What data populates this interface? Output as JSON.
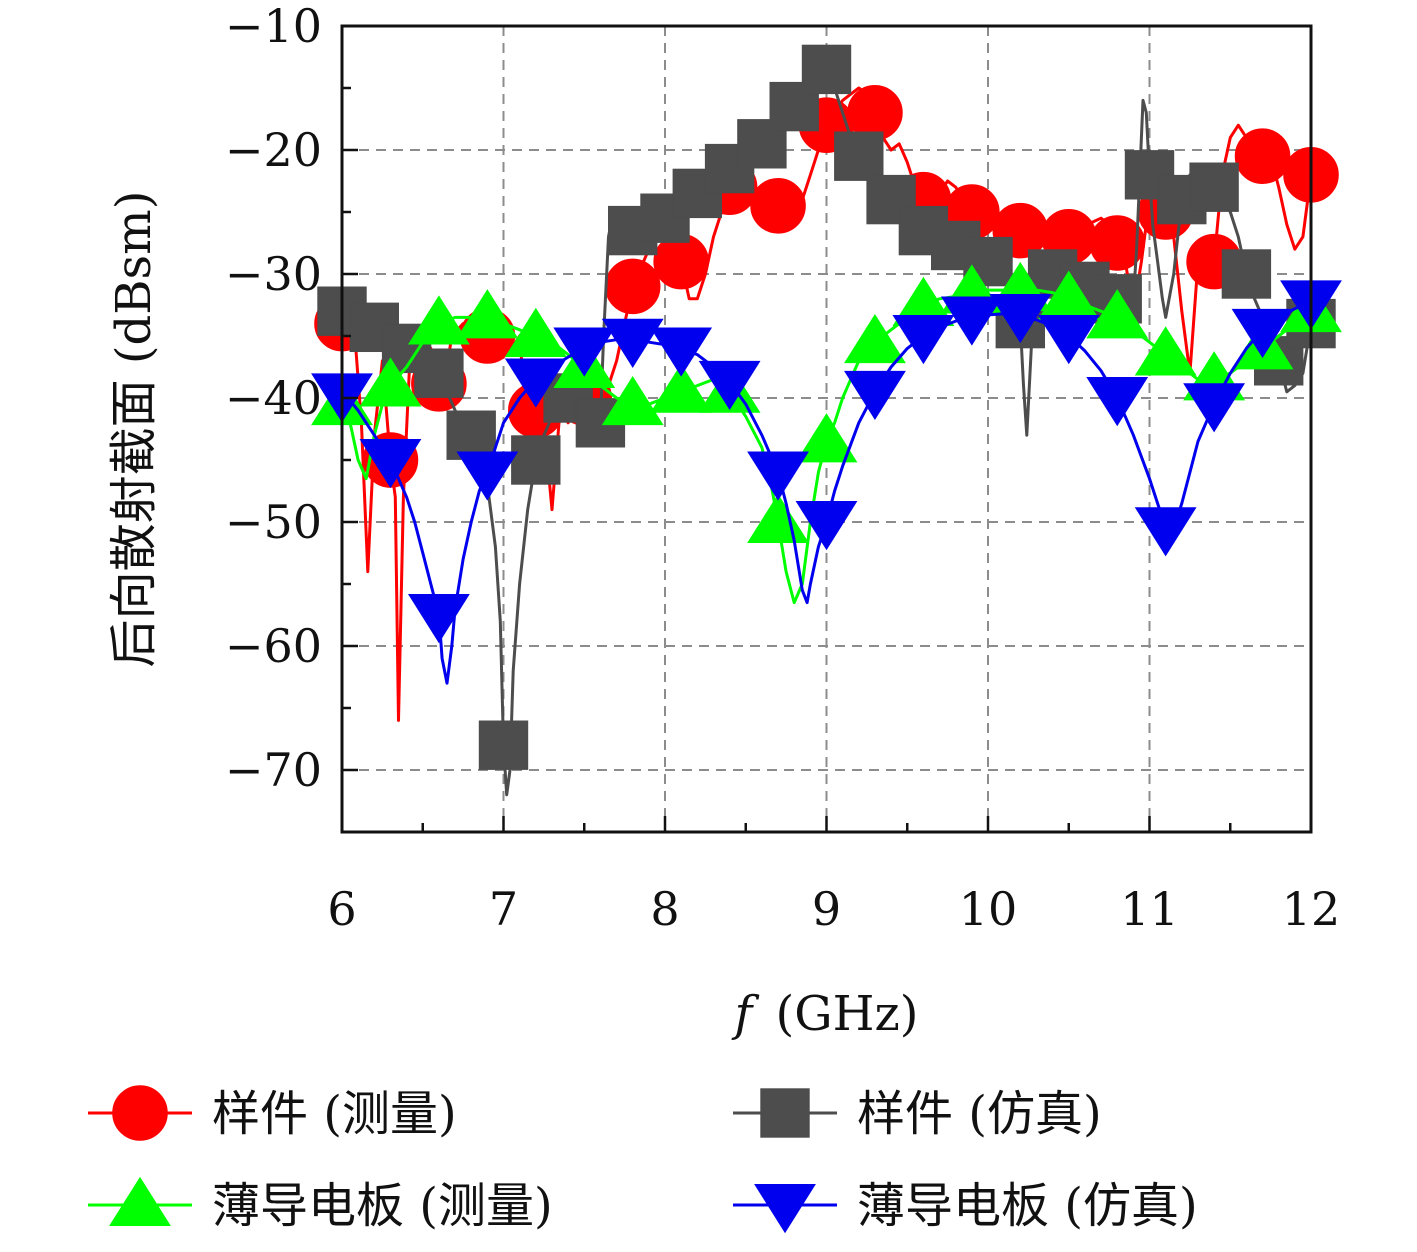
{
  "chart_data": {
    "type": "line",
    "xlabel_italic": "f",
    "xlabel_unit": "(GHz)",
    "ylabel": "后向散射截面 (dBsm)",
    "xlim": [
      6,
      12
    ],
    "ylim": [
      -75,
      -10
    ],
    "xticks": [
      "6",
      "7",
      "8",
      "9",
      "10",
      "11",
      "12"
    ],
    "yticks": [
      "−10",
      "−20",
      "−30",
      "−40",
      "−50",
      "−60",
      "−70"
    ],
    "grid": true,
    "legend_position": "bottom",
    "series": [
      {
        "name": "样件 (测量)",
        "color": "#ff0000",
        "marker": "circle",
        "x": [
          6.0,
          6.08,
          6.12,
          6.16,
          6.2,
          6.25,
          6.3,
          6.33,
          6.35,
          6.38,
          6.42,
          6.48,
          6.55,
          6.62,
          6.68,
          6.75,
          6.82,
          6.9,
          6.95,
          7.0,
          7.05,
          7.1,
          7.15,
          7.2,
          7.25,
          7.3,
          7.35,
          7.4,
          7.45,
          7.5,
          7.55,
          7.6,
          7.65,
          7.7,
          7.75,
          7.8,
          7.85,
          7.9,
          7.95,
          8.0,
          8.05,
          8.1,
          8.15,
          8.2,
          8.25,
          8.3,
          8.35,
          8.4,
          8.45,
          8.5,
          8.55,
          8.6,
          8.65,
          8.7,
          8.75,
          8.8,
          8.85,
          8.9,
          8.95,
          9.0,
          9.05,
          9.1,
          9.15,
          9.2,
          9.25,
          9.3,
          9.35,
          9.4,
          9.45,
          9.5,
          9.55,
          9.6,
          9.65,
          9.7,
          9.75,
          9.8,
          9.85,
          9.9,
          9.95,
          10.0,
          10.05,
          10.1,
          10.15,
          10.2,
          10.25,
          10.3,
          10.35,
          10.4,
          10.45,
          10.5,
          10.55,
          10.6,
          10.65,
          10.7,
          10.75,
          10.8,
          10.85,
          10.9,
          10.95,
          11.0,
          11.05,
          11.1,
          11.15,
          11.2,
          11.25,
          11.3,
          11.35,
          11.4,
          11.45,
          11.5,
          11.55,
          11.6,
          11.65,
          11.7,
          11.75,
          11.8,
          11.85,
          11.9,
          11.95,
          12.0
        ],
        "y": [
          -34,
          -35,
          -42,
          -54,
          -43,
          -37,
          -45,
          -48,
          -66,
          -48,
          -37,
          -35,
          -36,
          -40,
          -35,
          -34,
          -34,
          -35,
          -36,
          -35,
          -36,
          -35,
          -43,
          -41,
          -42,
          -49,
          -41,
          -42,
          -41,
          -40,
          -40,
          -41,
          -39,
          -37,
          -34,
          -31,
          -29.5,
          -28,
          -27,
          -26,
          -27,
          -29,
          -32,
          -32,
          -30,
          -27,
          -25,
          -23,
          -22.5,
          -24,
          -24.5,
          -25,
          -24.5,
          -24.5,
          -24.5,
          -24.8,
          -24,
          -22,
          -20,
          -18,
          -17,
          -16,
          -15.5,
          -15,
          -15.5,
          -17,
          -19,
          -20,
          -19.5,
          -21,
          -23,
          -24,
          -24,
          -23.5,
          -22.5,
          -23,
          -24,
          -25,
          -25.5,
          -26,
          -26.5,
          -26.8,
          -26.5,
          -26.5,
          -27,
          -27.2,
          -27,
          -26.5,
          -26.5,
          -27,
          -26.5,
          -26,
          -25.8,
          -25.5,
          -26,
          -27.5,
          -29,
          -33,
          -29,
          -24,
          -22,
          -25,
          -27,
          -33,
          -38,
          -29,
          -28,
          -29,
          -22,
          -19,
          -18,
          -19,
          -21,
          -20.5,
          -20.5,
          -23,
          -26,
          -28,
          -27,
          -22
        ]
      },
      {
        "name": "样件 (仿真)",
        "color": "#4d4d4d",
        "marker": "square",
        "x": [
          6.0,
          6.05,
          6.1,
          6.15,
          6.2,
          6.25,
          6.3,
          6.35,
          6.4,
          6.45,
          6.5,
          6.55,
          6.6,
          6.65,
          6.7,
          6.75,
          6.8,
          6.85,
          6.9,
          6.95,
          6.98,
          7.0,
          7.02,
          7.04,
          7.06,
          7.1,
          7.15,
          7.2,
          7.25,
          7.3,
          7.35,
          7.4,
          7.45,
          7.5,
          7.55,
          7.58,
          7.6,
          7.62,
          7.65,
          7.68,
          7.7,
          7.75,
          7.8,
          7.85,
          7.9,
          7.95,
          8.0,
          8.1,
          8.2,
          8.3,
          8.4,
          8.5,
          8.6,
          8.7,
          8.8,
          8.9,
          9.0,
          9.05,
          9.1,
          9.15,
          9.2,
          9.25,
          9.3,
          9.4,
          9.5,
          9.6,
          9.7,
          9.8,
          9.9,
          10.0,
          10.1,
          10.15,
          10.2,
          10.22,
          10.24,
          10.26,
          10.28,
          10.3,
          10.35,
          10.4,
          10.45,
          10.5,
          10.6,
          10.7,
          10.8,
          10.85,
          10.88,
          10.9,
          10.92,
          10.94,
          10.96,
          10.98,
          11.0,
          11.02,
          11.05,
          11.08,
          11.1,
          11.15,
          11.2,
          11.25,
          11.3,
          11.35,
          11.4,
          11.45,
          11.5,
          11.55,
          11.6,
          11.65,
          11.7,
          11.75,
          11.8,
          11.85,
          11.9,
          11.95,
          12.0
        ],
        "y": [
          -33,
          -33.5,
          -34,
          -34.2,
          -34.3,
          -34.6,
          -35,
          -35.5,
          -36,
          -36.5,
          -37,
          -37.5,
          -38,
          -39.5,
          -41,
          -42,
          -43,
          -44.5,
          -47,
          -52,
          -58,
          -68,
          -72,
          -70,
          -62,
          -55,
          -49,
          -45,
          -43,
          -41.5,
          -40.5,
          -40,
          -39.5,
          -39.5,
          -41,
          -43.5,
          -42,
          -35,
          -27,
          -25,
          -25,
          -26,
          -26.5,
          -26.2,
          -26,
          -25.7,
          -25.5,
          -24.5,
          -23.5,
          -22.5,
          -21.5,
          -20.5,
          -19.5,
          -18,
          -16.5,
          -14.5,
          -13.5,
          -15,
          -17,
          -19,
          -20.5,
          -21.5,
          -22.5,
          -24,
          -25.5,
          -26.5,
          -27,
          -27.7,
          -28.3,
          -29,
          -30,
          -31,
          -34,
          -39,
          -43,
          -38,
          -33,
          -31,
          -30.5,
          -30,
          -30.3,
          -30.5,
          -31,
          -31.5,
          -32,
          -33,
          -34,
          -32,
          -28,
          -22,
          -16,
          -17,
          -22,
          -26,
          -29,
          -32,
          -33.5,
          -30,
          -24,
          -22,
          -21.8,
          -22,
          -23,
          -24,
          -25,
          -27,
          -30,
          -32,
          -33.5,
          -35,
          -37,
          -39.5,
          -39,
          -38,
          -34
        ]
      },
      {
        "name": "薄导电板 (测量)",
        "color": "#00ff00",
        "marker": "triangle-up",
        "x": [
          6.0,
          6.05,
          6.1,
          6.15,
          6.2,
          6.25,
          6.3,
          6.4,
          6.5,
          6.6,
          6.7,
          6.8,
          6.9,
          7.0,
          7.1,
          7.2,
          7.3,
          7.4,
          7.5,
          7.6,
          7.7,
          7.8,
          7.9,
          8.0,
          8.1,
          8.2,
          8.3,
          8.4,
          8.5,
          8.6,
          8.65,
          8.7,
          8.75,
          8.8,
          8.85,
          8.9,
          8.95,
          9.0,
          9.05,
          9.1,
          9.2,
          9.3,
          9.4,
          9.5,
          9.6,
          9.7,
          9.8,
          9.9,
          10.0,
          10.1,
          10.2,
          10.3,
          10.4,
          10.5,
          10.6,
          10.7,
          10.8,
          10.9,
          11.0,
          11.1,
          11.2,
          11.3,
          11.4,
          11.5,
          11.6,
          11.7,
          11.8,
          11.9,
          12.0
        ],
        "y": [
          -40.5,
          -42,
          -45,
          -46.5,
          -43,
          -40.5,
          -39,
          -37.5,
          -35.5,
          -34,
          -33.5,
          -33.5,
          -33.5,
          -34,
          -34.5,
          -35,
          -35.5,
          -36.5,
          -37.5,
          -39,
          -40,
          -40.5,
          -40.5,
          -40,
          -39.5,
          -39,
          -38.5,
          -39.5,
          -41.5,
          -44,
          -46.5,
          -50,
          -54,
          -56.5,
          -55,
          -50,
          -46,
          -43.5,
          -42,
          -40,
          -37,
          -35.5,
          -34.5,
          -33.5,
          -32.5,
          -32,
          -31.8,
          -31.5,
          -31.3,
          -31.3,
          -31.3,
          -31.3,
          -31.5,
          -32,
          -32.5,
          -33,
          -33.5,
          -34.5,
          -35.5,
          -36.5,
          -37.5,
          -38.5,
          -38.5,
          -38,
          -37,
          -36,
          -35,
          -34,
          -33
        ]
      },
      {
        "name": "薄导电板 (仿真)",
        "color": "#0000ee",
        "marker": "triangle-down",
        "x": [
          6.0,
          6.05,
          6.1,
          6.15,
          6.2,
          6.25,
          6.3,
          6.35,
          6.4,
          6.45,
          6.5,
          6.55,
          6.6,
          6.62,
          6.65,
          6.68,
          6.7,
          6.75,
          6.8,
          6.85,
          6.9,
          6.95,
          7.0,
          7.1,
          7.2,
          7.3,
          7.4,
          7.5,
          7.6,
          7.7,
          7.8,
          7.9,
          8.0,
          8.1,
          8.2,
          8.3,
          8.4,
          8.5,
          8.6,
          8.7,
          8.75,
          8.8,
          8.85,
          8.88,
          8.9,
          8.95,
          9.0,
          9.05,
          9.1,
          9.2,
          9.3,
          9.4,
          9.5,
          9.6,
          9.7,
          9.8,
          9.9,
          10.0,
          10.1,
          10.2,
          10.3,
          10.4,
          10.5,
          10.6,
          10.7,
          10.8,
          10.9,
          11.0,
          11.05,
          11.1,
          11.15,
          11.2,
          11.25,
          11.3,
          11.35,
          11.4,
          11.5,
          11.6,
          11.7,
          11.8,
          11.9,
          12.0
        ],
        "y": [
          -39.7,
          -40.2,
          -41,
          -42,
          -43,
          -44,
          -45,
          -46.5,
          -48,
          -50,
          -52.5,
          -55,
          -57.5,
          -61,
          -63,
          -60,
          -57,
          -53,
          -50,
          -47.5,
          -46,
          -44,
          -42,
          -40,
          -38.5,
          -37.5,
          -36.7,
          -36,
          -35.5,
          -35.3,
          -35.3,
          -35.5,
          -35.7,
          -36,
          -36.5,
          -37.5,
          -38.7,
          -40.5,
          -43,
          -46,
          -48.5,
          -51.5,
          -55.5,
          -56.5,
          -55,
          -52,
          -50,
          -47.5,
          -45.5,
          -42,
          -39.5,
          -37.5,
          -36,
          -35,
          -34.3,
          -33.8,
          -33.5,
          -33.3,
          -33.2,
          -33.3,
          -33.7,
          -34.2,
          -35,
          -36.2,
          -37.8,
          -40,
          -43,
          -46.5,
          -48.5,
          -50.5,
          -50.5,
          -48.5,
          -46,
          -43.5,
          -42,
          -40.5,
          -38,
          -36,
          -34.5,
          -33.5,
          -32.8,
          -32.2
        ]
      }
    ]
  }
}
